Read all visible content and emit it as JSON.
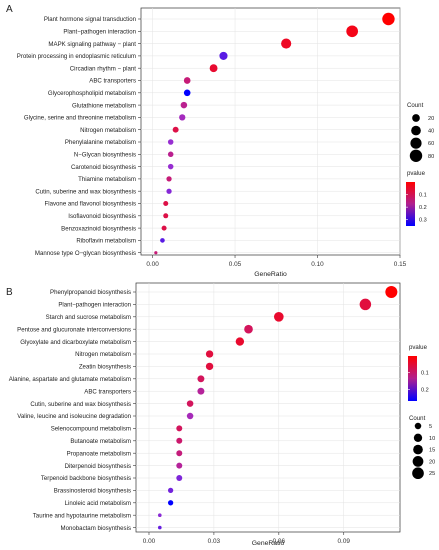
{
  "chart_data": [
    {
      "type": "scatter",
      "panel_label": "A",
      "xlabel": "GeneRatio",
      "ylabel": "",
      "xlim": [
        -0.007,
        0.15
      ],
      "xticks": [
        0.0,
        0.05,
        0.1,
        0.15
      ],
      "xtick_labels": [
        "0.00",
        "0.05",
        "0.10",
        "0.15"
      ],
      "grid": true,
      "legend_position": "right",
      "colors": {
        "high": "#ff0000",
        "mid": "#9b2fd0",
        "low": "#0000ff"
      },
      "size_legend": {
        "title": "Count",
        "values": [
          20,
          40,
          60,
          80
        ],
        "labels": [
          "20",
          "40",
          "60",
          "80"
        ]
      },
      "color_legend": {
        "title": "pvalue",
        "range": [
          0.0,
          0.35
        ],
        "ticks": [
          0.1,
          0.2,
          0.3
        ],
        "labels": [
          "0.1",
          "0.2",
          "0.3"
        ]
      },
      "points": [
        {
          "term": "Plant hormone signal transduction",
          "x": 0.143,
          "count": 80,
          "pvalue": 0.0
        },
        {
          "term": "Plant−pathogen interaction",
          "x": 0.121,
          "count": 68,
          "pvalue": 0.02
        },
        {
          "term": "MAPK signaling pathway − plant",
          "x": 0.081,
          "count": 46,
          "pvalue": 0.03
        },
        {
          "term": "Protein processing in endoplasmic reticulum",
          "x": 0.043,
          "count": 24,
          "pvalue": 0.25
        },
        {
          "term": "Circadian rhythm − plant",
          "x": 0.037,
          "count": 21,
          "pvalue": 0.04
        },
        {
          "term": "ABC transporters",
          "x": 0.021,
          "count": 12,
          "pvalue": 0.1
        },
        {
          "term": "Glycerophospholipid metabolism",
          "x": 0.021,
          "count": 12,
          "pvalue": 0.35
        },
        {
          "term": "Glutathione metabolism",
          "x": 0.019,
          "count": 11,
          "pvalue": 0.12
        },
        {
          "term": "Glycine, serine and threonine metabolism",
          "x": 0.018,
          "count": 10,
          "pvalue": 0.16
        },
        {
          "term": "Nitrogen metabolism",
          "x": 0.014,
          "count": 8,
          "pvalue": 0.06
        },
        {
          "term": "Phenylalanine metabolism",
          "x": 0.011,
          "count": 6,
          "pvalue": 0.18
        },
        {
          "term": "N−Glycan biosynthesis",
          "x": 0.011,
          "count": 6,
          "pvalue": 0.12
        },
        {
          "term": "Carotenoid biosynthesis",
          "x": 0.011,
          "count": 6,
          "pvalue": 0.18
        },
        {
          "term": "Thiamine metabolism",
          "x": 0.01,
          "count": 5,
          "pvalue": 0.1
        },
        {
          "term": "Cutin, suberine and wax biosynthesis",
          "x": 0.01,
          "count": 5,
          "pvalue": 0.2
        },
        {
          "term": "Flavone and flavonol biosynthesis",
          "x": 0.008,
          "count": 4,
          "pvalue": 0.06
        },
        {
          "term": "Isoflavonoid biosynthesis",
          "x": 0.008,
          "count": 4,
          "pvalue": 0.06
        },
        {
          "term": "Benzoxazinoid biosynthesis",
          "x": 0.007,
          "count": 4,
          "pvalue": 0.06
        },
        {
          "term": "Riboflavin metabolism",
          "x": 0.006,
          "count": 3,
          "pvalue": 0.25
        },
        {
          "term": "Mannose type O−glycan biosynthesis",
          "x": 0.002,
          "count": 1,
          "pvalue": 0.1
        }
      ]
    },
    {
      "type": "scatter",
      "panel_label": "B",
      "xlabel": "GeneRatio",
      "ylabel": "",
      "xlim": [
        -0.006,
        0.116
      ],
      "xticks": [
        0.0,
        0.03,
        0.06,
        0.09
      ],
      "xtick_labels": [
        "0.00",
        "0.03",
        "0.06",
        "0.09"
      ],
      "grid": true,
      "legend_position": "right",
      "colors": {
        "high": "#ff0000",
        "mid": "#9b2fd0",
        "low": "#0000ff"
      },
      "size_legend": {
        "title": "Count",
        "values": [
          5,
          10,
          15,
          20,
          25
        ],
        "labels": [
          "5",
          "10",
          "15",
          "20",
          "25"
        ]
      },
      "color_legend": {
        "title": "pvalue",
        "range": [
          0.0,
          0.27
        ],
        "ticks": [
          0.1,
          0.2
        ],
        "labels": [
          "0.1",
          "0.2"
        ]
      },
      "points": [
        {
          "term": "Phenylpropanoid biosynthesis",
          "x": 0.112,
          "count": 27,
          "pvalue": 0.0
        },
        {
          "term": "Plant−pathogen interaction",
          "x": 0.1,
          "count": 24,
          "pvalue": 0.04
        },
        {
          "term": "Starch and sucrose metabolism",
          "x": 0.06,
          "count": 15,
          "pvalue": 0.03
        },
        {
          "term": "Pentose and glucuronate interconversions",
          "x": 0.046,
          "count": 11,
          "pvalue": 0.06
        },
        {
          "term": "Glyoxylate and dicarboxylate metabolism",
          "x": 0.042,
          "count": 10,
          "pvalue": 0.03
        },
        {
          "term": "Nitrogen metabolism",
          "x": 0.028,
          "count": 7,
          "pvalue": 0.04
        },
        {
          "term": "Zeatin biosynthesis",
          "x": 0.028,
          "count": 7,
          "pvalue": 0.04
        },
        {
          "term": "Alanine, aspartate and glutamate metabolism",
          "x": 0.024,
          "count": 6,
          "pvalue": 0.06
        },
        {
          "term": "ABC transporters",
          "x": 0.024,
          "count": 6,
          "pvalue": 0.1
        },
        {
          "term": "Cutin, suberine and wax biosynthesis",
          "x": 0.019,
          "count": 5,
          "pvalue": 0.06
        },
        {
          "term": "Valine, leucine and isoleucine degradation",
          "x": 0.019,
          "count": 5,
          "pvalue": 0.12
        },
        {
          "term": "Selenocompound metabolism",
          "x": 0.014,
          "count": 4,
          "pvalue": 0.06
        },
        {
          "term": "Butanoate metabolism",
          "x": 0.014,
          "count": 4,
          "pvalue": 0.07
        },
        {
          "term": "Propanoate metabolism",
          "x": 0.014,
          "count": 4,
          "pvalue": 0.08
        },
        {
          "term": "Diterpenoid biosynthesis",
          "x": 0.014,
          "count": 4,
          "pvalue": 0.1
        },
        {
          "term": "Terpenoid backbone biosynthesis",
          "x": 0.014,
          "count": 4,
          "pvalue": 0.16
        },
        {
          "term": "Brassinosteroid biosynthesis",
          "x": 0.01,
          "count": 3,
          "pvalue": 0.17
        },
        {
          "term": "Linoleic acid metabolism",
          "x": 0.01,
          "count": 3,
          "pvalue": 0.27
        },
        {
          "term": "Taurine and hypotaurine metabolism",
          "x": 0.005,
          "count": 2,
          "pvalue": 0.15
        },
        {
          "term": "Monobactam biosynthesis",
          "x": 0.005,
          "count": 2,
          "pvalue": 0.18
        }
      ]
    }
  ]
}
